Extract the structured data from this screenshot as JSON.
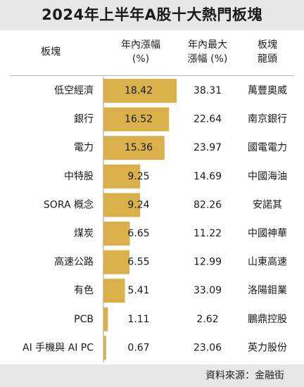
{
  "chart_data": {
    "type": "table",
    "title": "2024年上半年A股十大熱門板塊",
    "columns": {
      "sector": "板塊",
      "gain_line1": "年內漲幅",
      "gain_line2": "(%)",
      "max_line1": "年內最大",
      "max_line2": "漲幅 (%)",
      "leader_line1": "板塊",
      "leader_line2": "龍頭"
    },
    "bar_color": "#d9b04a",
    "x_range": [
      0,
      18.42
    ],
    "rows": [
      {
        "sector": "低空經濟",
        "gain": "18.42",
        "max_gain": "38.31",
        "leader": "萬豐奧威"
      },
      {
        "sector": "銀行",
        "gain": "16.52",
        "max_gain": "22.64",
        "leader": "南京銀行"
      },
      {
        "sector": "電力",
        "gain": "15.36",
        "max_gain": "23.97",
        "leader": "國電電力"
      },
      {
        "sector": "中特股",
        "gain": "9.25",
        "max_gain": "14.69",
        "leader": "中國海油"
      },
      {
        "sector": "SORA 概念",
        "gain": "9.24",
        "max_gain": "82.26",
        "leader": "安諾其"
      },
      {
        "sector": "煤炭",
        "gain": "6.65",
        "max_gain": "11.22",
        "leader": "中國神華"
      },
      {
        "sector": "高速公路",
        "gain": "6.55",
        "max_gain": "12.99",
        "leader": "山東高速"
      },
      {
        "sector": "有色",
        "gain": "5.41",
        "max_gain": "33.09",
        "leader": "洛陽鉬業"
      },
      {
        "sector": "PCB",
        "gain": "1.11",
        "max_gain": "2.62",
        "leader": "鵬鼎控股"
      },
      {
        "sector": "AI 手機與 AI PC",
        "gain": "0.67",
        "max_gain": "23.06",
        "leader": "英力股份"
      }
    ],
    "source": "資料來源：金融街"
  }
}
